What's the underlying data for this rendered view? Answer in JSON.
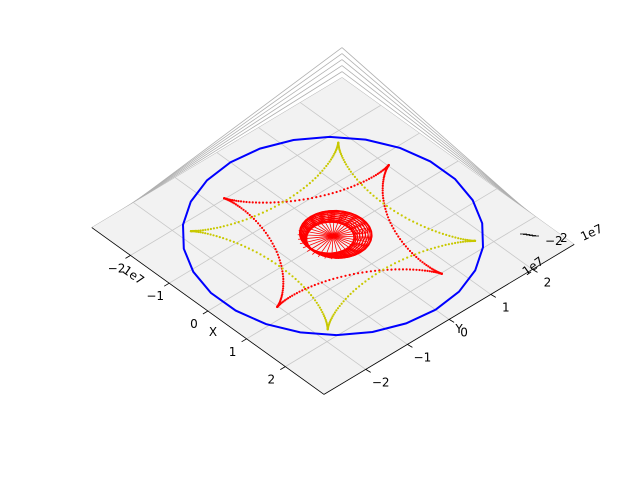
{
  "chart_data": {
    "type": "scatter",
    "projection": "3d",
    "title": "",
    "xlabel": "X",
    "ylabel": "Y",
    "zlabel": "",
    "x_offset_text": "1e7",
    "y_offset_text": "1e7",
    "z_offset_text": "1e7",
    "xlim": [
      -3,
      3
    ],
    "ylim": [
      -3,
      3
    ],
    "x_ticks": [
      "−2",
      "−1",
      "0",
      "1",
      "2"
    ],
    "y_ticks": [
      "−2",
      "−1",
      "0",
      "1",
      "2"
    ],
    "z_ticks": [
      "−2",
      "2"
    ],
    "grid": true,
    "series": [
      {
        "color": "#0000ff",
        "style": "line",
        "shape": "circle",
        "radius": 2.65,
        "segments": 26
      },
      {
        "color": "#ff0000",
        "style": "dotted",
        "shape": "astroid",
        "radius": 2.15,
        "rotation_deg": 20
      },
      {
        "color": "#c8c800",
        "style": "dotted",
        "shape": "astroid",
        "radius": 2.5,
        "rotation_deg": 45
      },
      {
        "color": "#ff0000",
        "style": "line",
        "shape": "small-circles",
        "radius": 0.62
      }
    ]
  }
}
